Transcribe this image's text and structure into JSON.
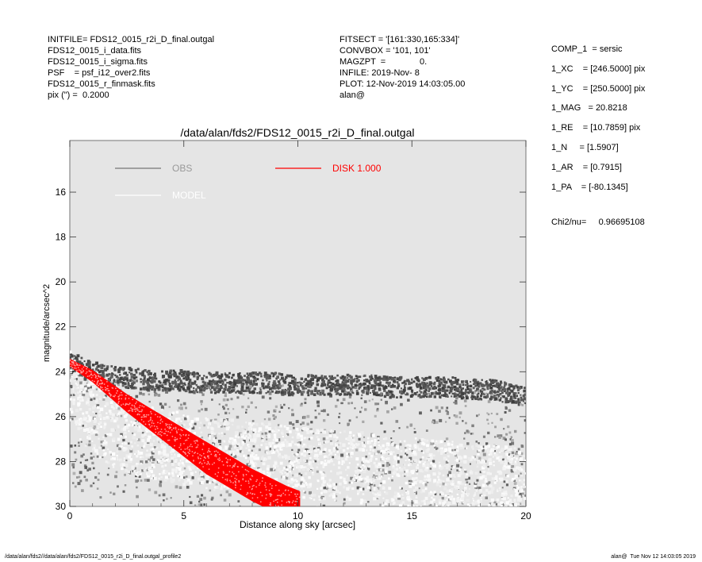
{
  "header_left": [
    "INITFILE= FDS12_0015_r2i_D_final.outgal",
    "FDS12_0015_i_data.fits",
    "FDS12_0015_i_sigma.fits",
    "PSF    = psf_i12_over2.fits",
    "FDS12_0015_r_finmask.fits",
    "pix (\") =  0.2000"
  ],
  "header_mid": [
    "FITSECT = '[161:330,165:334]'",
    "CONVBOX = '101, 101'",
    "MAGZPT  =              0.",
    "INFILE: 2019-Nov- 8",
    "PLOT: 12-Nov-2019 14:03:05.00",
    "alan@"
  ],
  "header_right": [
    "COMP_1  = sersic",
    "1_XC    = [246.5000] pix",
    "1_YC    = [250.5000] pix",
    "1_MAG   = 20.8218",
    "1_RE    = [10.7859] pix",
    "1_N     = [1.5907]",
    "1_AR    = [0.7915]",
    "1_PA    = [-80.1345]"
  ],
  "chi2": {
    "label": "Chi2/nu=",
    "value": "0.96695108"
  },
  "footer": {
    "left": "/data/alan/fds2//data/alan/fds2/FDS12_0015_r2i_D_final.outgal_profile2",
    "right": "alan@  Tue Nov 12 14:03:05 2019"
  },
  "chart_data": {
    "type": "scatter",
    "title": "/data/alan/fds2/FDS12_0015_r2i_D_final.outgal",
    "xlabel": "Distance along sky [arcsec]",
    "ylabel": "magnitude/arcsec^2",
    "xlim": [
      0,
      20
    ],
    "ylim": [
      30.0,
      13.7
    ],
    "y_inverted": true,
    "xticks": [
      0,
      5,
      10,
      15,
      20
    ],
    "yticks": [
      16,
      18,
      20,
      22,
      24,
      26,
      28,
      30
    ],
    "grid": false,
    "background": "#e5e5e5",
    "legend": [
      {
        "label": "OBS",
        "color": "#999999",
        "line": "#888888"
      },
      {
        "label": "MODEL",
        "color": "#ffffff",
        "line": "#ffffff"
      },
      {
        "label": "DISK  1.000",
        "color": "#ff0000",
        "line": "#ff0000"
      }
    ],
    "series": [
      {
        "name": "OBS",
        "color": "#555555",
        "style": "points",
        "note_band": "observed pixels, bright band near 24.3-24.6 mag across full range",
        "x": [
          0.1,
          0.3,
          0.5,
          0.7,
          1.0,
          1.3,
          1.6,
          2.0,
          2.5,
          3.0,
          3.5,
          4.0,
          4.5,
          5.0,
          5.5,
          6.0,
          6.5,
          7.0,
          7.5,
          8.0,
          8.5,
          9.0,
          9.5,
          10.0,
          10.5,
          11.0,
          11.5,
          12.0,
          12.5,
          13.0,
          13.5,
          14.0,
          14.5,
          15.0,
          15.5,
          16.0,
          16.5,
          17.0,
          17.5,
          18.0,
          18.5,
          19.0,
          19.5,
          19.9
        ],
        "y": [
          23.6,
          23.7,
          23.8,
          23.9,
          24.0,
          24.1,
          24.2,
          24.2,
          24.3,
          24.3,
          24.4,
          24.4,
          24.4,
          24.4,
          24.5,
          24.5,
          24.5,
          24.5,
          24.5,
          24.5,
          24.5,
          24.5,
          24.6,
          24.6,
          24.6,
          24.6,
          24.6,
          24.6,
          24.6,
          24.6,
          24.6,
          24.7,
          24.7,
          24.7,
          24.7,
          24.7,
          24.7,
          24.7,
          24.8,
          24.8,
          24.8,
          24.9,
          25.0,
          25.1
        ]
      },
      {
        "name": "MODEL",
        "color": "#ffffff",
        "style": "points",
        "x": [
          0.1,
          0.5,
          1.0,
          1.5,
          2.0,
          3.0,
          4.0,
          5.0,
          6.0,
          7.0,
          8.0,
          9.0,
          10.0,
          12.0,
          14.0,
          16.0,
          18.0,
          20.0
        ],
        "y": [
          24.0,
          24.9,
          25.4,
          25.8,
          26.1,
          26.4,
          26.6,
          26.8,
          27.0,
          27.1,
          27.2,
          27.3,
          27.4,
          27.6,
          27.8,
          28.0,
          28.2,
          28.4
        ]
      },
      {
        "name": "DISK  1.000",
        "color": "#ff0000",
        "style": "band",
        "x": [
          0.0,
          0.5,
          1.0,
          1.5,
          2.0,
          2.5,
          3.0,
          3.5,
          4.0,
          4.5,
          5.0,
          5.5,
          6.0,
          6.5,
          7.0,
          7.5,
          8.0,
          8.5,
          9.0,
          9.5,
          10.0,
          10.1
        ],
        "y": [
          23.6,
          23.9,
          24.2,
          24.6,
          25.0,
          25.4,
          25.75,
          26.1,
          26.45,
          26.8,
          27.15,
          27.5,
          27.85,
          28.15,
          28.45,
          28.75,
          29.05,
          29.3,
          29.55,
          29.8,
          30.0,
          30.05
        ]
      }
    ]
  }
}
